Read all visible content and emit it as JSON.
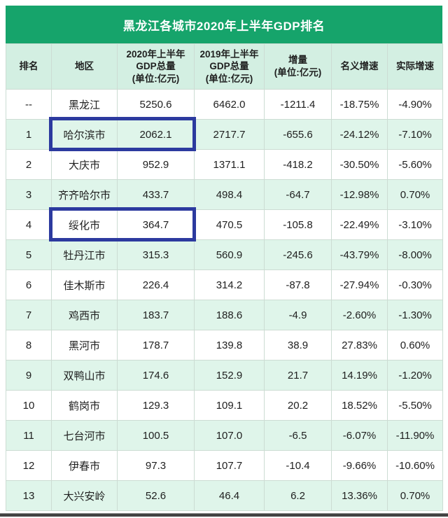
{
  "chart_data": {
    "type": "table",
    "title": "黑龙江各城市2020年上半年GDP排名",
    "columns": [
      "排名",
      "地区",
      "2020年上半年\nGDP总量\n(单位:亿元)",
      "2019年上半年\nGDP总量\n(单位:亿元)",
      "增量\n(单位:亿元)",
      "名义增速",
      "实际增速"
    ],
    "rows": [
      [
        "--",
        "黑龙江",
        "5250.6",
        "6462.0",
        "-1211.4",
        "-18.75%",
        "-4.90%"
      ],
      [
        "1",
        "哈尔滨市",
        "2062.1",
        "2717.7",
        "-655.6",
        "-24.12%",
        "-7.10%"
      ],
      [
        "2",
        "大庆市",
        "952.9",
        "1371.1",
        "-418.2",
        "-30.50%",
        "-5.60%"
      ],
      [
        "3",
        "齐齐哈尔市",
        "433.7",
        "498.4",
        "-64.7",
        "-12.98%",
        "0.70%"
      ],
      [
        "4",
        "绥化市",
        "364.7",
        "470.5",
        "-105.8",
        "-22.49%",
        "-3.10%"
      ],
      [
        "5",
        "牡丹江市",
        "315.3",
        "560.9",
        "-245.6",
        "-43.79%",
        "-8.00%"
      ],
      [
        "6",
        "佳木斯市",
        "226.4",
        "314.2",
        "-87.8",
        "-27.94%",
        "-0.30%"
      ],
      [
        "7",
        "鸡西市",
        "183.7",
        "188.6",
        "-4.9",
        "-2.60%",
        "-1.30%"
      ],
      [
        "8",
        "黑河市",
        "178.7",
        "139.8",
        "38.9",
        "27.83%",
        "0.60%"
      ],
      [
        "9",
        "双鸭山市",
        "174.6",
        "152.9",
        "21.7",
        "14.19%",
        "-1.20%"
      ],
      [
        "10",
        "鹤岗市",
        "129.3",
        "109.1",
        "20.2",
        "18.52%",
        "-5.50%"
      ],
      [
        "11",
        "七台河市",
        "100.5",
        "107.0",
        "-6.5",
        "-6.07%",
        "-11.90%"
      ],
      [
        "12",
        "伊春市",
        "97.3",
        "107.7",
        "-10.4",
        "-9.66%",
        "-10.60%"
      ],
      [
        "13",
        "大兴安岭",
        "52.6",
        "46.4",
        "6.2",
        "13.36%",
        "0.70%"
      ]
    ],
    "highlighted_rows": [
      "哈尔滨市",
      "绥化市"
    ],
    "highlighted_columns_in_box": [
      "地区",
      "2020年上半年GDP总量"
    ],
    "layout": {
      "row_stripe": "alternating white and mint, first data row white",
      "grid": true
    }
  },
  "colors": {
    "title_bar_green": "#16a46b",
    "title_text": "#ffffff",
    "header_row_mint": "#d3efe2",
    "stripe_row_mint": "#dff5ea",
    "row_white": "#ffffff",
    "cell_border": "#ccdcd3",
    "body_text": "#1f1f1f",
    "highlight_box_blue": "#2c3a9f",
    "bottom_bar_gray": "#424242"
  }
}
